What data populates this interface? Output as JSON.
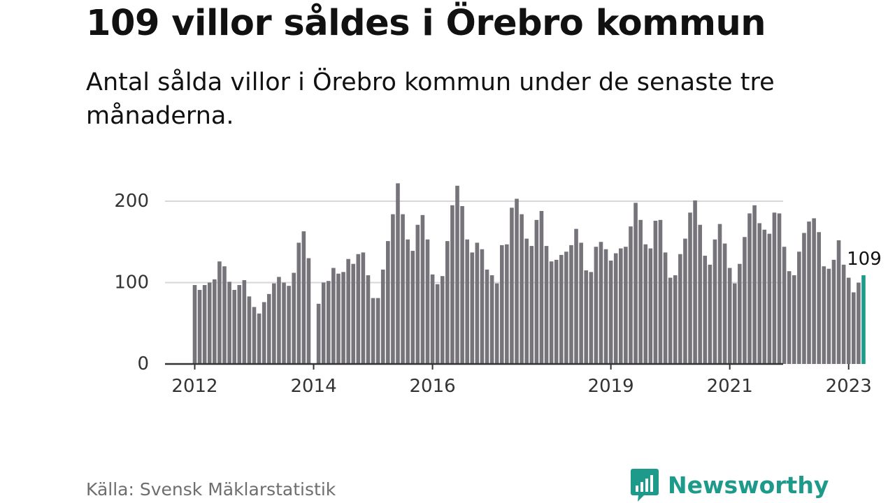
{
  "headline": "109 villor såldes i Örebro kommun",
  "subheadline": "Antal sålda villor i Örebro kommun under de senaste tre månaderna.",
  "source": "Källa: Svensk Mäklarstatistik",
  "brand": {
    "name": "Newsworthy",
    "color": "#1d9a8a",
    "icon": "newsworthy-logo-icon"
  },
  "chart_data": {
    "type": "bar",
    "x_start": "2012-01",
    "x_end": "2023-04",
    "x_tick_labels": [
      "2012",
      "2014",
      "2016",
      "2019",
      "2021",
      "2023"
    ],
    "x_tick_dates": [
      "2012-01",
      "2014-01",
      "2016-01",
      "2019-01",
      "2021-01",
      "2023-01"
    ],
    "y_ticks": [
      0,
      100,
      200
    ],
    "ylim": [
      0,
      220
    ],
    "grid": true,
    "bar_color": "#76747a",
    "highlight_color": "#1d9a8a",
    "highlight_label": "109",
    "values": [
      97,
      91,
      97,
      100,
      104,
      126,
      120,
      101,
      91,
      97,
      103,
      83,
      70,
      62,
      76,
      86,
      99,
      107,
      100,
      96,
      112,
      149,
      163,
      130,
      null,
      74,
      100,
      102,
      118,
      111,
      113,
      129,
      123,
      135,
      137,
      109,
      81,
      81,
      116,
      151,
      184,
      222,
      184,
      153,
      139,
      171,
      183,
      153,
      110,
      98,
      108,
      151,
      195,
      219,
      194,
      153,
      137,
      149,
      141,
      116,
      109,
      99,
      146,
      147,
      192,
      203,
      184,
      154,
      145,
      177,
      188,
      145,
      126,
      128,
      134,
      138,
      146,
      166,
      149,
      115,
      113,
      144,
      150,
      141,
      127,
      136,
      142,
      144,
      169,
      198,
      177,
      147,
      142,
      176,
      177,
      137,
      106,
      109,
      135,
      154,
      186,
      201,
      171,
      133,
      122,
      153,
      172,
      148,
      118,
      99,
      123,
      156,
      185,
      195,
      173,
      165,
      160,
      186,
      185,
      144,
      114,
      109,
      138,
      161,
      175,
      179,
      162,
      120,
      117,
      128,
      152,
      122,
      106,
      88,
      100,
      109
    ]
  }
}
